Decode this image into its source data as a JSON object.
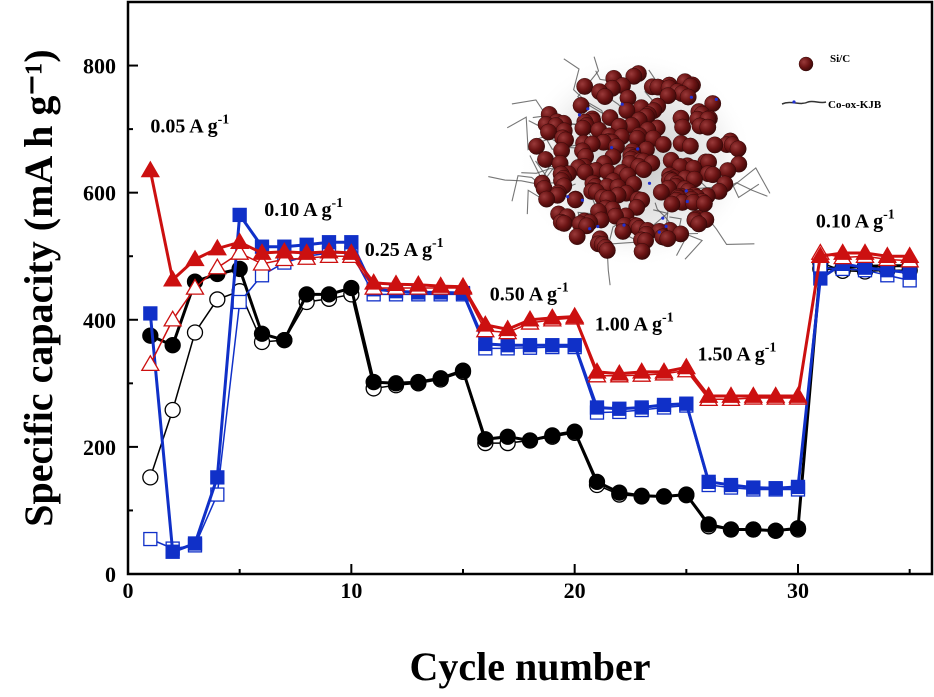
{
  "chart_data": {
    "type": "scatter",
    "title": "",
    "xlabel": "Cycle number",
    "ylabel": "Specific capacity (mA h g⁻¹)",
    "xlim": [
      0,
      36
    ],
    "ylim": [
      0,
      900
    ],
    "xticks": [
      0,
      10,
      20,
      30
    ],
    "yticks": [
      0,
      200,
      400,
      600,
      800
    ],
    "x": [
      1,
      2,
      3,
      4,
      5,
      6,
      7,
      8,
      9,
      10,
      11,
      12,
      13,
      14,
      15,
      16,
      17,
      18,
      19,
      20,
      21,
      22,
      23,
      24,
      25,
      26,
      27,
      28,
      29,
      30,
      31,
      32,
      33,
      34,
      35
    ],
    "series": [
      {
        "name": "red",
        "color": "#cc1010",
        "marker": "triangle",
        "charge": [
          635,
          463,
          495,
          512,
          522,
          505,
          507,
          505,
          507,
          505,
          458,
          456,
          455,
          453,
          452,
          392,
          385,
          400,
          403,
          405,
          318,
          315,
          318,
          318,
          325,
          280,
          280,
          280,
          280,
          280,
          500,
          505,
          505,
          500,
          500
        ],
        "discharge": [
          330,
          400,
          450,
          482,
          505,
          488,
          495,
          497,
          500,
          500,
          450,
          450,
          450,
          450,
          450,
          383,
          380,
          395,
          400,
          403,
          312,
          312,
          313,
          315,
          320,
          275,
          275,
          277,
          277,
          277,
          505,
          498,
          500,
          495,
          493
        ]
      },
      {
        "name": "blue",
        "color": "#1030c8",
        "marker": "square",
        "charge": [
          410,
          35,
          48,
          152,
          565,
          515,
          515,
          518,
          522,
          522,
          448,
          445,
          443,
          443,
          442,
          362,
          360,
          360,
          360,
          360,
          262,
          260,
          262,
          266,
          268,
          145,
          140,
          136,
          135,
          137,
          465,
          488,
          482,
          478,
          474
        ],
        "discharge": [
          55,
          40,
          45,
          125,
          428,
          470,
          490,
          500,
          505,
          505,
          440,
          440,
          440,
          440,
          440,
          355,
          355,
          356,
          357,
          357,
          254,
          255,
          258,
          262,
          265,
          140,
          136,
          133,
          133,
          133,
          482,
          480,
          478,
          470,
          462
        ]
      },
      {
        "name": "black",
        "color": "#000000",
        "marker": "circle",
        "charge": [
          375,
          360,
          460,
          472,
          480,
          378,
          368,
          440,
          440,
          450,
          302,
          300,
          302,
          308,
          320,
          212,
          216,
          210,
          218,
          224,
          145,
          128,
          123,
          122,
          125,
          78,
          70,
          70,
          68,
          72,
          480,
          482,
          484,
          485,
          485
        ],
        "discharge": [
          152,
          258,
          380,
          432,
          445,
          365,
          368,
          428,
          433,
          440,
          292,
          297,
          300,
          306,
          318,
          206,
          206,
          210,
          216,
          222,
          140,
          125,
          122,
          122,
          124,
          75,
          70,
          70,
          68,
          70,
          490,
          477,
          476,
          478,
          478
        ]
      }
    ],
    "annotations": [
      {
        "rate": "0.05 A g",
        "sup": "-1",
        "at": [
          1.0,
          695
        ]
      },
      {
        "rate": "0.10 A g",
        "sup": "-1",
        "at": [
          6.1,
          563
        ]
      },
      {
        "rate": "0.25 A g",
        "sup": "-1",
        "at": [
          10.6,
          500
        ]
      },
      {
        "rate": "0.50 A g",
        "sup": "-1",
        "at": [
          16.2,
          430
        ]
      },
      {
        "rate": "1.00 A g",
        "sup": "-1",
        "at": [
          20.9,
          383
        ]
      },
      {
        "rate": "1.50 A g",
        "sup": "-1",
        "at": [
          25.5,
          336
        ]
      },
      {
        "rate": "0.10 A g",
        "sup": "-1",
        "at": [
          30.8,
          545
        ]
      }
    ],
    "inset_legend": [
      {
        "label": "Si/C",
        "icon": "particle-icon",
        "color": "#6b1414"
      },
      {
        "label": "Co-ox-KJB",
        "icon": "fiber-icon",
        "color": "#333333"
      }
    ]
  }
}
